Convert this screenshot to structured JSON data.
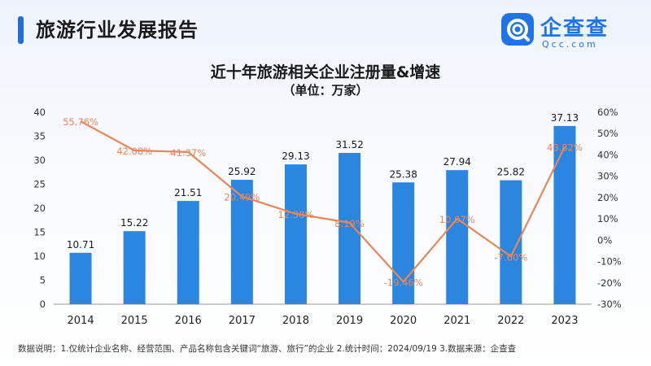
{
  "header": {
    "title": "旅游行业发展报告"
  },
  "logo": {
    "name": "企查查",
    "domain": "Qcc.com"
  },
  "chart_data": {
    "type": "bar+line",
    "title": "近十年旅游相关企业注册量&增速",
    "subtitle": "（单位：万家）",
    "categories": [
      "2014",
      "2015",
      "2016",
      "2017",
      "2018",
      "2019",
      "2020",
      "2021",
      "2022",
      "2023"
    ],
    "bar_series": {
      "values": [
        10.71,
        15.22,
        21.51,
        25.92,
        29.13,
        31.52,
        25.38,
        27.94,
        25.82,
        37.13
      ],
      "color": "#2a86df"
    },
    "line_series": {
      "values": [
        55.76,
        42.08,
        41.37,
        20.49,
        12.38,
        8.19,
        -19.46,
        10.07,
        -7.6,
        43.82
      ],
      "labels": [
        "55.76%",
        "42.08%",
        "41.37%",
        "20.49%",
        "12.38%",
        "8.19%",
        "-19.46%",
        "10.07%",
        "-7.60%",
        "43.82%"
      ],
      "color": "#e8865a"
    },
    "left_axis": {
      "ylim": [
        0,
        40
      ],
      "ticks": [
        "0",
        "5",
        "10",
        "15",
        "20",
        "25",
        "30",
        "35",
        "40"
      ]
    },
    "right_axis": {
      "ylim": [
        -30,
        60
      ],
      "ticks": [
        "-30%",
        "-20%",
        "-10%",
        "0%",
        "10%",
        "20%",
        "30%",
        "40%",
        "50%",
        "60%"
      ]
    },
    "grid": false,
    "legend": false
  },
  "footnote": "数据说明：1.仅统计企业名称、经营范围、产品名称包含关键词“旅游、旅行”的企业  2.统计时间：2024/09/19   3.数据来源：企查查"
}
